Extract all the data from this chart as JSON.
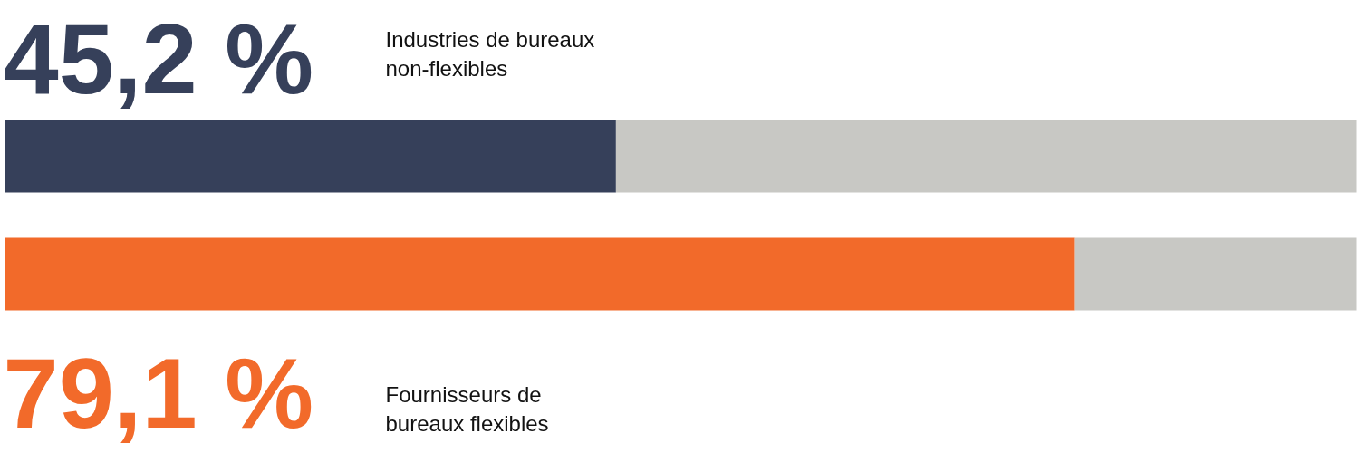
{
  "chart_data": {
    "type": "bar",
    "orientation": "horizontal",
    "stacked": true,
    "categories": [
      "Industries de bureaux non-flexibles",
      "Fournisseurs de bureaux flexibles"
    ],
    "series": [
      {
        "colors": [
          "#36405a",
          "#f26a2a"
        ],
        "values": [
          45.2,
          79.1
        ],
        "value_labels": [
          "45,2 %",
          "79,1 %"
        ]
      },
      {
        "color": "#c8c8c4",
        "values": [
          54.8,
          20.9
        ]
      }
    ],
    "xlim": [
      0,
      100
    ],
    "tick_labels": false,
    "grid": false
  }
}
